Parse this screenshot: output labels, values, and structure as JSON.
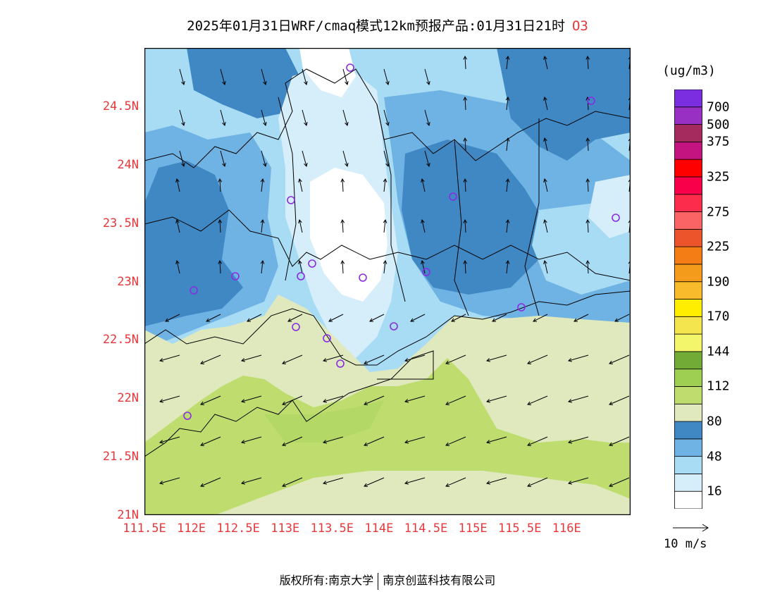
{
  "title": {
    "main": "2025年01月31日WRF/cmaq模式12km预报产品:01月31日21时",
    "species": "O3"
  },
  "map": {
    "lat_labels": [
      "24.5N",
      "24N",
      "23.5N",
      "23N",
      "22.5N",
      "22N",
      "21.5N",
      "21N"
    ],
    "lon_labels": [
      "111.5E",
      "112E",
      "112.5E",
      "113E",
      "113.5E",
      "114E",
      "114.5E",
      "115E",
      "115.5E",
      "116E"
    ],
    "lat_range": [
      21,
      25
    ],
    "lon_range": [
      111.5,
      116.5
    ]
  },
  "colorbar": {
    "unit": "(ug/m3)",
    "labels": [
      "16",
      "48",
      "80",
      "112",
      "144",
      "170",
      "190",
      "225",
      "275",
      "325",
      "375",
      "500",
      "700"
    ],
    "colors": [
      "#ffffff",
      "#d6eefa",
      "#a8dcf5",
      "#6fb3e4",
      "#4088c4",
      "#dfe9bd",
      "#bfdd6f",
      "#9ecf52",
      "#72ac37",
      "#f3f56a",
      "#f4e44e",
      "#ffee00",
      "#f8bb2c",
      "#f49b1c",
      "#f47d15",
      "#ec552c",
      "#fa6464",
      "#fb2c4c",
      "#f8004a",
      "#ff0000",
      "#c41480",
      "#a52a5e",
      "#9830c4",
      "#7b2ee0"
    ]
  },
  "wind_scale_label": "10 m/s",
  "stations": "o3-monitor-station-icon",
  "footer": {
    "left": "版权所有:南京大学",
    "right": "南京创蓝科技有限公司"
  }
}
